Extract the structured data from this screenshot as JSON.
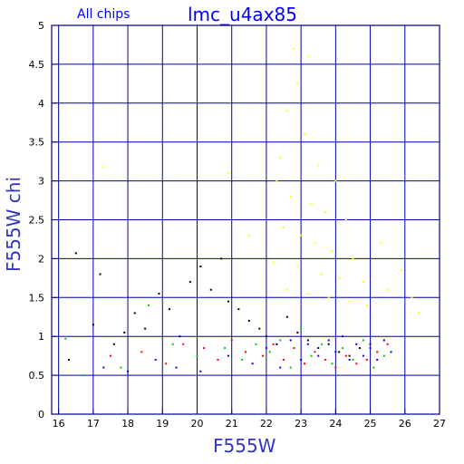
{
  "chart_data": {
    "type": "scatter",
    "title": "lmc_u4ax85",
    "subtitle": "All chips",
    "xlabel": "F555W",
    "ylabel": "F555W chi",
    "xlim": [
      15.8,
      27
    ],
    "ylim": [
      0,
      5
    ],
    "x_ticks": [
      16,
      17,
      18,
      19,
      20,
      21,
      22,
      23,
      24,
      25,
      26,
      27
    ],
    "y_ticks": [
      0,
      0.5,
      1,
      1.5,
      2,
      2.5,
      3,
      3.5,
      4,
      4.5,
      5
    ],
    "grid": true,
    "colors": {
      "axis": "#000088",
      "grid": "#0000aa",
      "series": [
        "#000000",
        "#ff0000",
        "#00cc00",
        "#0000ff",
        "#ffff00"
      ]
    },
    "series": [
      {
        "color": "#000000",
        "points": [
          [
            16.5,
            2.07
          ],
          [
            16.3,
            0.7
          ],
          [
            17.2,
            1.8
          ],
          [
            17.0,
            1.15
          ],
          [
            17.6,
            0.9
          ],
          [
            17.9,
            1.05
          ],
          [
            18.2,
            1.3
          ],
          [
            18.5,
            1.1
          ],
          [
            18.9,
            1.55
          ],
          [
            19.2,
            1.35
          ],
          [
            19.5,
            1.0
          ],
          [
            19.8,
            1.7
          ],
          [
            20.1,
            1.9
          ],
          [
            20.4,
            1.6
          ],
          [
            20.7,
            2.0
          ],
          [
            20.9,
            1.45
          ],
          [
            21.2,
            1.35
          ],
          [
            21.5,
            1.2
          ],
          [
            21.8,
            1.1
          ],
          [
            22.0,
            1.0
          ],
          [
            22.3,
            0.9
          ],
          [
            22.6,
            1.25
          ],
          [
            22.9,
            1.05
          ],
          [
            23.2,
            0.95
          ],
          [
            23.5,
            0.85
          ],
          [
            23.8,
            0.9
          ],
          [
            24.1,
            0.8
          ],
          [
            24.4,
            0.75
          ],
          [
            24.7,
            0.85
          ],
          [
            25.0,
            0.9
          ]
        ]
      },
      {
        "color": "#ff0000",
        "points": [
          [
            17.5,
            0.75
          ],
          [
            18.4,
            0.8
          ],
          [
            19.1,
            0.65
          ],
          [
            19.6,
            0.9
          ],
          [
            20.2,
            0.85
          ],
          [
            20.6,
            0.7
          ],
          [
            21.0,
            0.95
          ],
          [
            21.4,
            0.8
          ],
          [
            21.9,
            0.75
          ],
          [
            22.2,
            0.9
          ],
          [
            22.5,
            0.7
          ],
          [
            22.8,
            0.85
          ],
          [
            23.1,
            0.65
          ],
          [
            23.4,
            0.8
          ],
          [
            23.7,
            0.7
          ],
          [
            24.0,
            0.6
          ],
          [
            24.3,
            0.75
          ],
          [
            24.6,
            0.65
          ],
          [
            24.9,
            0.7
          ],
          [
            25.2,
            0.8
          ],
          [
            25.5,
            0.9
          ]
        ]
      },
      {
        "color": "#00cc00",
        "points": [
          [
            16.2,
            0.97
          ],
          [
            16.7,
            0.5
          ],
          [
            17.8,
            0.6
          ],
          [
            18.6,
            1.4
          ],
          [
            19.3,
            0.9
          ],
          [
            20.0,
            0.75
          ],
          [
            20.8,
            0.85
          ],
          [
            21.3,
            0.7
          ],
          [
            21.7,
            0.9
          ],
          [
            22.1,
            0.8
          ],
          [
            22.4,
            0.95
          ],
          [
            22.7,
            0.6
          ],
          [
            23.0,
            1.1
          ],
          [
            23.3,
            0.75
          ],
          [
            23.6,
            0.9
          ],
          [
            23.9,
            0.65
          ],
          [
            24.2,
            0.85
          ],
          [
            24.5,
            0.7
          ],
          [
            24.8,
            0.95
          ],
          [
            25.1,
            0.6
          ],
          [
            25.4,
            0.75
          ]
        ]
      },
      {
        "color": "#0000ff",
        "points": [
          [
            17.3,
            0.6
          ],
          [
            18.0,
            0.55
          ],
          [
            18.8,
            0.7
          ],
          [
            19.4,
            0.6
          ],
          [
            20.1,
            0.55
          ],
          [
            20.9,
            0.75
          ],
          [
            21.6,
            0.65
          ],
          [
            22.0,
            0.85
          ],
          [
            22.4,
            0.6
          ],
          [
            22.7,
            0.95
          ],
          [
            23.0,
            0.7
          ],
          [
            23.2,
            0.9
          ],
          [
            23.5,
            0.75
          ],
          [
            23.8,
            0.95
          ],
          [
            24.0,
            0.8
          ],
          [
            24.2,
            1.0
          ],
          [
            24.4,
            0.7
          ],
          [
            24.6,
            0.9
          ],
          [
            24.8,
            0.75
          ],
          [
            25.0,
            0.85
          ],
          [
            25.2,
            0.7
          ],
          [
            25.4,
            0.95
          ],
          [
            25.6,
            0.8
          ]
        ]
      },
      {
        "color": "#ffff00",
        "points": [
          [
            22.8,
            4.7
          ],
          [
            23.2,
            4.6
          ],
          [
            22.9,
            4.25
          ],
          [
            22.6,
            3.9
          ],
          [
            23.1,
            3.6
          ],
          [
            22.4,
            3.3
          ],
          [
            23.5,
            3.2
          ],
          [
            22.3,
            3.0
          ],
          [
            24.0,
            3.0
          ],
          [
            22.7,
            2.8
          ],
          [
            23.3,
            2.7
          ],
          [
            23.7,
            2.6
          ],
          [
            24.3,
            2.5
          ],
          [
            22.5,
            2.4
          ],
          [
            23.0,
            2.3
          ],
          [
            23.4,
            2.2
          ],
          [
            23.9,
            2.1
          ],
          [
            24.5,
            2.0
          ],
          [
            22.2,
            1.95
          ],
          [
            22.9,
            1.9
          ],
          [
            23.6,
            1.8
          ],
          [
            24.1,
            1.75
          ],
          [
            24.8,
            1.7
          ],
          [
            25.5,
            1.6
          ],
          [
            26.2,
            1.5
          ],
          [
            26.4,
            1.3
          ],
          [
            21.5,
            2.3
          ],
          [
            20.9,
            3.1
          ],
          [
            17.3,
            3.18
          ],
          [
            25.3,
            2.2
          ],
          [
            25.9,
            1.85
          ],
          [
            22.6,
            1.6
          ],
          [
            23.2,
            1.55
          ],
          [
            23.8,
            1.5
          ],
          [
            24.4,
            1.45
          ],
          [
            24.9,
            1.4
          ]
        ]
      }
    ]
  }
}
